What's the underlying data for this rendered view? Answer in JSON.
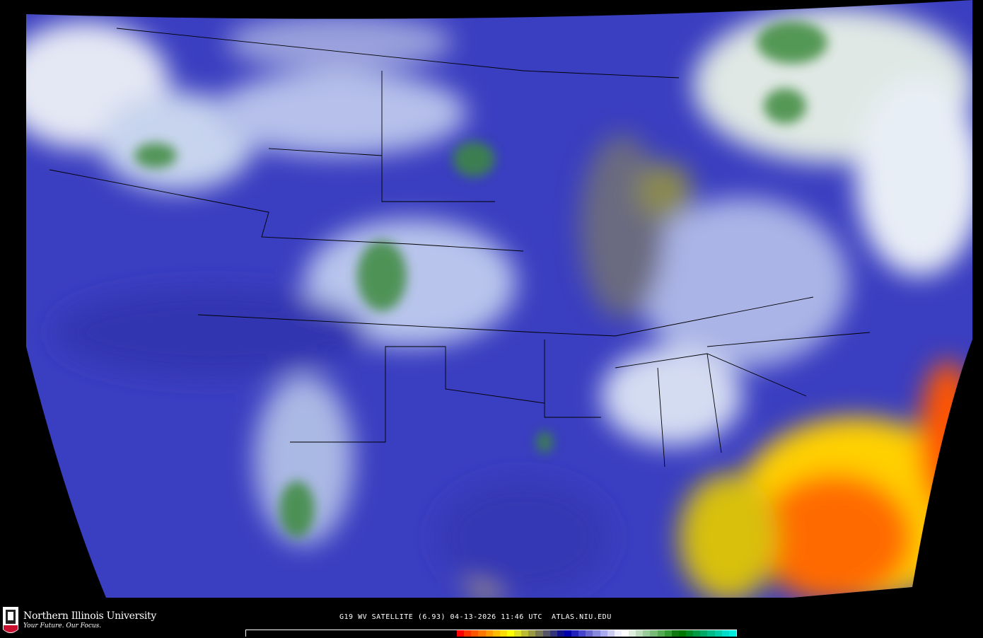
{
  "map": {
    "product": "water vapor satellite imagery",
    "region": "Continental United States",
    "background_color": "#000000",
    "border_color": "#000000"
  },
  "branding": {
    "university": "Northern Illinois University",
    "tagline": "Your Future. Our Focus.",
    "seal_text": "NIU",
    "seal_color": "#c8102e"
  },
  "caption": {
    "text": "G19 WV SATELLITE (6.93) 04-13-2026 11:46 UTC  ATLAS.NIU.EDU"
  },
  "colorbar": {
    "colors": [
      "#ff0000",
      "#ff3300",
      "#ff5500",
      "#ff7700",
      "#ff9900",
      "#ffbb00",
      "#ffdd00",
      "#ffff00",
      "#dddd22",
      "#bbbb33",
      "#999944",
      "#777755",
      "#555566",
      "#333377",
      "#111188",
      "#0000aa",
      "#2222bb",
      "#4444cc",
      "#6666cc",
      "#8888dd",
      "#aaaaee",
      "#ccccee",
      "#eeeeff",
      "#ffffff",
      "#ddeedd",
      "#bbddbb",
      "#99cc99",
      "#77bb77",
      "#55aa55",
      "#339933",
      "#117711",
      "#007700",
      "#008822",
      "#009944",
      "#00aa66",
      "#00bb88",
      "#00ccaa",
      "#00ddcc",
      "#00eedd"
    ]
  }
}
